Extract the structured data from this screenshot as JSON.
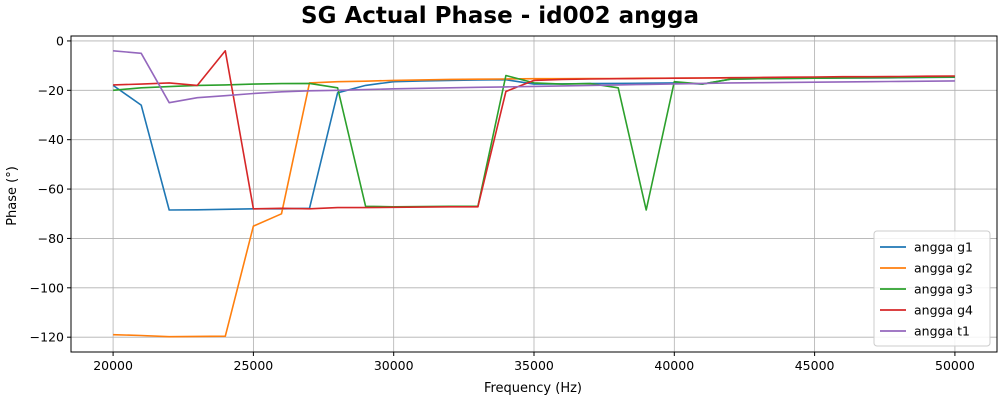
{
  "chart_data": {
    "type": "line",
    "title": "SG Actual Phase - id002 angga",
    "xlabel": "Frequency (Hz)",
    "ylabel": "Phase (°)",
    "xlim": [
      18500,
      51500
    ],
    "ylim": [
      -126,
      2
    ],
    "xticks": [
      20000,
      25000,
      30000,
      35000,
      40000,
      45000,
      50000
    ],
    "yticks": [
      0,
      -20,
      -40,
      -60,
      -80,
      -100,
      -120
    ],
    "grid": true,
    "legend_position": "bottom-right",
    "series": [
      {
        "name": "angga g1",
        "color": "#1f77b4",
        "x": [
          20000,
          21000,
          22000,
          23000,
          24000,
          25000,
          26000,
          27000,
          28000,
          29000,
          30000,
          31000,
          32000,
          33000,
          34000,
          35000,
          36000,
          37000,
          38000,
          39000,
          40000,
          41000,
          42000,
          43000,
          44000,
          45000,
          46000,
          47000,
          48000,
          49000,
          50000
        ],
        "y": [
          -18,
          -26,
          -68.5,
          -68.4,
          -68.2,
          -68,
          -68,
          -67.8,
          -21,
          -18,
          -16.5,
          -16.2,
          -16,
          -15.8,
          -15.7,
          -17.5,
          -17.4,
          -17.3,
          -17.2,
          -17.1,
          -17,
          -17.5,
          -15.5,
          -15.3,
          -15.2,
          -15.1,
          -15.0,
          -15.0,
          -14.9,
          -14.8,
          -14.7
        ]
      },
      {
        "name": "angga g2",
        "color": "#ff7f0e",
        "x": [
          20000,
          21000,
          22000,
          23000,
          24000,
          25000,
          26000,
          27000,
          28000,
          29000,
          30000,
          31000,
          32000,
          33000,
          34000,
          35000,
          36000,
          37000,
          38000,
          39000,
          40000,
          41000,
          42000,
          43000,
          44000,
          45000,
          46000,
          47000,
          48000,
          49000,
          50000
        ],
        "y": [
          -119,
          -119.3,
          -119.8,
          -119.7,
          -119.6,
          -75,
          -70,
          -17,
          -16.5,
          -16.3,
          -16,
          -15.8,
          -15.6,
          -15.5,
          -15.4,
          -15.3,
          -15.3,
          -15.2,
          -15.2,
          -15.1,
          -15.1,
          -15.0,
          -15.0,
          -14.9,
          -14.9,
          -14.8,
          -14.8,
          -14.7,
          -14.7,
          -14.6,
          -14.5
        ]
      },
      {
        "name": "angga g3",
        "color": "#2ca02c",
        "x": [
          20000,
          21000,
          22000,
          23000,
          24000,
          25000,
          26000,
          27000,
          28000,
          29000,
          30000,
          31000,
          32000,
          33000,
          34000,
          35000,
          36000,
          37000,
          38000,
          39000,
          40000,
          41000,
          42000,
          43000,
          44000,
          45000,
          46000,
          47000,
          48000,
          49000,
          50000
        ],
        "y": [
          -20,
          -19,
          -18.5,
          -18,
          -17.8,
          -17.5,
          -17.3,
          -17.2,
          -19,
          -67,
          -67.2,
          -67.1,
          -67,
          -67,
          -14,
          -17,
          -17.5,
          -17.3,
          -19,
          -68.5,
          -16.5,
          -17.5,
          -15.5,
          -15.3,
          -15.2,
          -15.1,
          -15.0,
          -14.9,
          -14.8,
          -14.7,
          -14.6
        ]
      },
      {
        "name": "angga g4",
        "color": "#d62728",
        "x": [
          20000,
          21000,
          22000,
          23000,
          24000,
          25000,
          26000,
          27000,
          28000,
          29000,
          30000,
          31000,
          32000,
          33000,
          34000,
          35000,
          36000,
          37000,
          38000,
          39000,
          40000,
          41000,
          42000,
          43000,
          44000,
          45000,
          46000,
          47000,
          48000,
          49000,
          50000
        ],
        "y": [
          -17.8,
          -17.5,
          -17,
          -18,
          -4,
          -68,
          -67.8,
          -68,
          -67.5,
          -67.5,
          -67.4,
          -67.3,
          -67.2,
          -67.2,
          -20.5,
          -16,
          -15.6,
          -15.4,
          -15.3,
          -15.2,
          -15.1,
          -15.0,
          -14.9,
          -14.8,
          -14.7,
          -14.6,
          -14.5,
          -14.5,
          -14.4,
          -14.3,
          -14.2
        ]
      },
      {
        "name": "angga t1",
        "color": "#9467bd",
        "x": [
          20000,
          21000,
          22000,
          23000,
          24000,
          25000,
          26000,
          27000,
          28000,
          29000,
          30000,
          31000,
          32000,
          33000,
          34000,
          35000,
          36000,
          37000,
          38000,
          39000,
          40000,
          41000,
          42000,
          43000,
          44000,
          45000,
          46000,
          47000,
          48000,
          49000,
          50000
        ],
        "y": [
          -4,
          -5,
          -25,
          -23,
          -22.2,
          -21.3,
          -20.6,
          -20.2,
          -20,
          -19.7,
          -19.4,
          -19.2,
          -19.0,
          -18.8,
          -18.6,
          -18.4,
          -18.2,
          -18.0,
          -17.8,
          -17.6,
          -17.4,
          -17.2,
          -17.0,
          -16.9,
          -16.8,
          -16.7,
          -16.6,
          -16.5,
          -16.4,
          -16.3,
          -16.2
        ]
      }
    ]
  }
}
